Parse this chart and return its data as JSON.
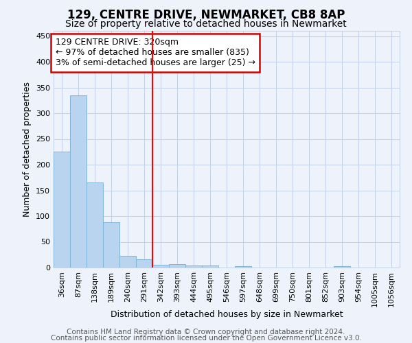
{
  "title": "129, CENTRE DRIVE, NEWMARKET, CB8 8AP",
  "subtitle": "Size of property relative to detached houses in Newmarket",
  "xlabel": "Distribution of detached houses by size in Newmarket",
  "ylabel": "Number of detached properties",
  "categories": [
    "36sqm",
    "87sqm",
    "138sqm",
    "189sqm",
    "240sqm",
    "291sqm",
    "342sqm",
    "393sqm",
    "444sqm",
    "495sqm",
    "546sqm",
    "597sqm",
    "648sqm",
    "699sqm",
    "750sqm",
    "801sqm",
    "852sqm",
    "903sqm",
    "954sqm",
    "1005sqm",
    "1056sqm"
  ],
  "values": [
    225,
    335,
    165,
    88,
    23,
    16,
    5,
    7,
    4,
    4,
    0,
    3,
    0,
    0,
    0,
    0,
    0,
    3,
    0,
    0,
    0
  ],
  "bar_color": "#b8d4ee",
  "bar_edge_color": "#80b4d8",
  "ylim": [
    0,
    460
  ],
  "yticks": [
    0,
    50,
    100,
    150,
    200,
    250,
    300,
    350,
    400,
    450
  ],
  "red_line_index": 6,
  "annotation_text": "129 CENTRE DRIVE: 320sqm\n← 97% of detached houses are smaller (835)\n3% of semi-detached houses are larger (25) →",
  "annotation_box_color": "#ffffff",
  "annotation_box_edge_color": "#cc0000",
  "footer1": "Contains HM Land Registry data © Crown copyright and database right 2024.",
  "footer2": "Contains public sector information licensed under the Open Government Licence v3.0.",
  "background_color": "#eef2fa",
  "grid_color": "#c0d0e8",
  "title_fontsize": 12,
  "subtitle_fontsize": 10,
  "axis_label_fontsize": 9,
  "tick_fontsize": 8,
  "annotation_fontsize": 9,
  "footer_fontsize": 7.5
}
